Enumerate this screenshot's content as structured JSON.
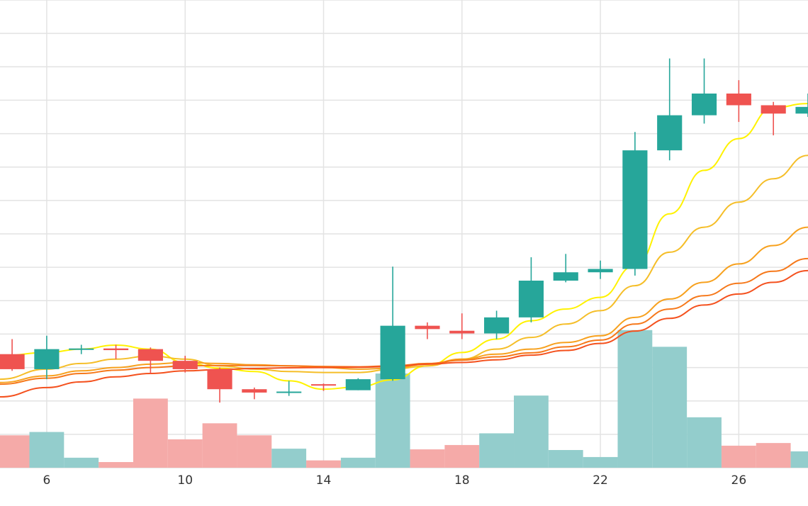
{
  "chart_data": {
    "type": "candlestick",
    "title": "",
    "xlabel": "",
    "ylabel": "",
    "x_ticks": [
      6,
      10,
      14,
      18,
      22,
      26
    ],
    "xlim": [
      4.65,
      28.0
    ],
    "ylim": [
      0,
      14
    ],
    "grid": true,
    "colors": {
      "up": "#26a69a",
      "down": "#ef5350",
      "volume_up": "#93cdcc",
      "volume_down": "#f5aaa8",
      "grid": "#e3e3e3",
      "tick_label": "#333333"
    },
    "candles": [
      {
        "day": 5,
        "open": 3.4,
        "high": 3.85,
        "low": 2.9,
        "close": 2.95
      },
      {
        "day": 6,
        "open": 2.95,
        "high": 3.95,
        "low": 2.65,
        "close": 3.55
      },
      {
        "day": 7,
        "open": 3.55,
        "high": 3.68,
        "low": 3.4,
        "close": 3.57
      },
      {
        "day": 8,
        "open": 3.57,
        "high": 3.68,
        "low": 3.25,
        "close": 3.52
      },
      {
        "day": 9,
        "open": 3.55,
        "high": 3.6,
        "low": 2.82,
        "close": 3.2
      },
      {
        "day": 10,
        "open": 3.2,
        "high": 3.35,
        "low": 2.85,
        "close": 2.95
      },
      {
        "day": 11,
        "open": 2.95,
        "high": 3.0,
        "low": 1.95,
        "close": 2.35
      },
      {
        "day": 12,
        "open": 2.35,
        "high": 2.4,
        "low": 2.05,
        "close": 2.25
      },
      {
        "day": 13,
        "open": 2.25,
        "high": 2.6,
        "low": 2.15,
        "close": 2.28
      },
      {
        "day": 14,
        "open": 2.5,
        "high": 2.52,
        "low": 2.3,
        "close": 2.48
      },
      {
        "day": 15,
        "open": 2.32,
        "high": 2.68,
        "low": 2.32,
        "close": 2.65
      },
      {
        "day": 16,
        "open": 2.65,
        "high": 6.02,
        "low": 2.6,
        "close": 4.25
      },
      {
        "day": 17,
        "open": 4.25,
        "high": 4.35,
        "low": 3.85,
        "close": 4.15
      },
      {
        "day": 18,
        "open": 4.1,
        "high": 4.62,
        "low": 3.85,
        "close": 4.02
      },
      {
        "day": 19,
        "open": 4.02,
        "high": 4.7,
        "low": 3.85,
        "close": 4.5
      },
      {
        "day": 20,
        "open": 4.5,
        "high": 6.3,
        "low": 4.35,
        "close": 5.6
      },
      {
        "day": 21,
        "open": 5.6,
        "high": 6.4,
        "low": 5.55,
        "close": 5.85
      },
      {
        "day": 22,
        "open": 5.85,
        "high": 6.2,
        "low": 5.65,
        "close": 5.95
      },
      {
        "day": 23,
        "open": 5.95,
        "high": 10.05,
        "low": 5.75,
        "close": 9.5
      },
      {
        "day": 24,
        "open": 9.5,
        "high": 12.25,
        "low": 9.2,
        "close": 10.55
      },
      {
        "day": 25,
        "open": 10.55,
        "high": 12.25,
        "low": 10.3,
        "close": 11.2
      },
      {
        "day": 26,
        "open": 11.2,
        "high": 11.6,
        "low": 10.35,
        "close": 10.85
      },
      {
        "day": 27,
        "open": 10.85,
        "high": 10.95,
        "low": 9.95,
        "close": 10.6
      },
      {
        "day": 28,
        "open": 10.6,
        "high": 11.2,
        "low": 10.5,
        "close": 10.8
      }
    ],
    "volume": {
      "baseline": 0,
      "values": [
        {
          "day": 5,
          "value": 0.97,
          "direction": "down"
        },
        {
          "day": 6,
          "value": 1.07,
          "direction": "up"
        },
        {
          "day": 7,
          "value": 0.3,
          "direction": "up"
        },
        {
          "day": 8,
          "value": 0.17,
          "direction": "down"
        },
        {
          "day": 9,
          "value": 2.07,
          "direction": "down"
        },
        {
          "day": 10,
          "value": 0.85,
          "direction": "down"
        },
        {
          "day": 11,
          "value": 1.33,
          "direction": "down"
        },
        {
          "day": 12,
          "value": 0.97,
          "direction": "down"
        },
        {
          "day": 13,
          "value": 0.57,
          "direction": "up"
        },
        {
          "day": 14,
          "value": 0.22,
          "direction": "down"
        },
        {
          "day": 15,
          "value": 0.3,
          "direction": "up"
        },
        {
          "day": 16,
          "value": 2.82,
          "direction": "up"
        },
        {
          "day": 17,
          "value": 0.55,
          "direction": "down"
        },
        {
          "day": 18,
          "value": 0.68,
          "direction": "down"
        },
        {
          "day": 19,
          "value": 1.03,
          "direction": "up"
        },
        {
          "day": 20,
          "value": 2.16,
          "direction": "up"
        },
        {
          "day": 21,
          "value": 0.53,
          "direction": "up"
        },
        {
          "day": 22,
          "value": 0.32,
          "direction": "up"
        },
        {
          "day": 23,
          "value": 4.12,
          "direction": "up"
        },
        {
          "day": 24,
          "value": 3.62,
          "direction": "up"
        },
        {
          "day": 25,
          "value": 1.51,
          "direction": "up"
        },
        {
          "day": 26,
          "value": 0.66,
          "direction": "down"
        },
        {
          "day": 27,
          "value": 0.74,
          "direction": "down"
        },
        {
          "day": 28,
          "value": 0.49,
          "direction": "up"
        }
      ]
    },
    "moving_averages": [
      {
        "color": "#fff200",
        "points": [
          [
            4.65,
            3.35
          ],
          [
            6,
            3.45
          ],
          [
            7,
            3.55
          ],
          [
            8,
            3.67
          ],
          [
            9,
            3.55
          ],
          [
            10,
            3.15
          ],
          [
            11,
            2.98
          ],
          [
            12,
            2.88
          ],
          [
            13,
            2.6
          ],
          [
            14,
            2.35
          ],
          [
            15,
            2.42
          ],
          [
            16,
            2.63
          ],
          [
            17,
            3.05
          ],
          [
            18,
            3.45
          ],
          [
            19,
            3.85
          ],
          [
            20,
            4.4
          ],
          [
            21,
            4.75
          ],
          [
            22,
            5.1
          ],
          [
            23,
            6.05
          ],
          [
            24,
            7.6
          ],
          [
            25,
            8.9
          ],
          [
            26,
            9.85
          ],
          [
            27,
            10.78
          ],
          [
            28,
            10.9
          ]
        ]
      },
      {
        "color": "#f5be28",
        "points": [
          [
            4.65,
            2.65
          ],
          [
            6,
            2.95
          ],
          [
            7,
            3.12
          ],
          [
            8,
            3.25
          ],
          [
            9,
            3.35
          ],
          [
            10,
            3.25
          ],
          [
            11,
            3.05
          ],
          [
            12,
            2.95
          ],
          [
            13,
            2.88
          ],
          [
            14,
            2.85
          ],
          [
            15,
            2.85
          ],
          [
            16,
            2.95
          ],
          [
            17,
            3.05
          ],
          [
            18,
            3.25
          ],
          [
            19,
            3.55
          ],
          [
            20,
            3.9
          ],
          [
            21,
            4.3
          ],
          [
            22,
            4.7
          ],
          [
            23,
            5.45
          ],
          [
            24,
            6.45
          ],
          [
            25,
            7.2
          ],
          [
            26,
            7.95
          ],
          [
            27,
            8.65
          ],
          [
            28,
            9.35
          ]
        ]
      },
      {
        "color": "#f7a11e",
        "points": [
          [
            4.65,
            2.55
          ],
          [
            6,
            2.75
          ],
          [
            7,
            2.9
          ],
          [
            8,
            3.0
          ],
          [
            9,
            3.1
          ],
          [
            10,
            3.15
          ],
          [
            11,
            3.12
          ],
          [
            12,
            3.08
          ],
          [
            13,
            3.05
          ],
          [
            14,
            3.0
          ],
          [
            15,
            2.95
          ],
          [
            16,
            2.98
          ],
          [
            17,
            3.1
          ],
          [
            18,
            3.25
          ],
          [
            19,
            3.4
          ],
          [
            20,
            3.55
          ],
          [
            21,
            3.75
          ],
          [
            22,
            3.95
          ],
          [
            23,
            4.5
          ],
          [
            24,
            5.05
          ],
          [
            25,
            5.55
          ],
          [
            26,
            6.1
          ],
          [
            27,
            6.65
          ],
          [
            28,
            7.2
          ]
        ]
      },
      {
        "color": "#f6781a",
        "points": [
          [
            4.65,
            2.5
          ],
          [
            6,
            2.68
          ],
          [
            7,
            2.82
          ],
          [
            8,
            2.92
          ],
          [
            9,
            3.0
          ],
          [
            10,
            3.05
          ],
          [
            11,
            3.06
          ],
          [
            12,
            3.06
          ],
          [
            13,
            3.05
          ],
          [
            14,
            3.03
          ],
          [
            15,
            3.02
          ],
          [
            16,
            3.05
          ],
          [
            17,
            3.12
          ],
          [
            18,
            3.22
          ],
          [
            19,
            3.32
          ],
          [
            20,
            3.44
          ],
          [
            21,
            3.62
          ],
          [
            22,
            3.82
          ],
          [
            23,
            4.3
          ],
          [
            24,
            4.75
          ],
          [
            25,
            5.15
          ],
          [
            26,
            5.52
          ],
          [
            27,
            5.88
          ],
          [
            28,
            6.26
          ]
        ]
      },
      {
        "color": "#f4511e",
        "points": [
          [
            4.65,
            2.12
          ],
          [
            6,
            2.4
          ],
          [
            7,
            2.57
          ],
          [
            8,
            2.72
          ],
          [
            9,
            2.82
          ],
          [
            10,
            2.9
          ],
          [
            11,
            2.94
          ],
          [
            12,
            2.97
          ],
          [
            13,
            2.99
          ],
          [
            14,
            3.0
          ],
          [
            15,
            3.01
          ],
          [
            16,
            3.03
          ],
          [
            17,
            3.1
          ],
          [
            18,
            3.15
          ],
          [
            19,
            3.23
          ],
          [
            20,
            3.37
          ],
          [
            21,
            3.51
          ],
          [
            22,
            3.72
          ],
          [
            23,
            4.09
          ],
          [
            24,
            4.47
          ],
          [
            25,
            4.87
          ],
          [
            26,
            5.2
          ],
          [
            27,
            5.55
          ],
          [
            28,
            5.9
          ]
        ]
      }
    ]
  }
}
